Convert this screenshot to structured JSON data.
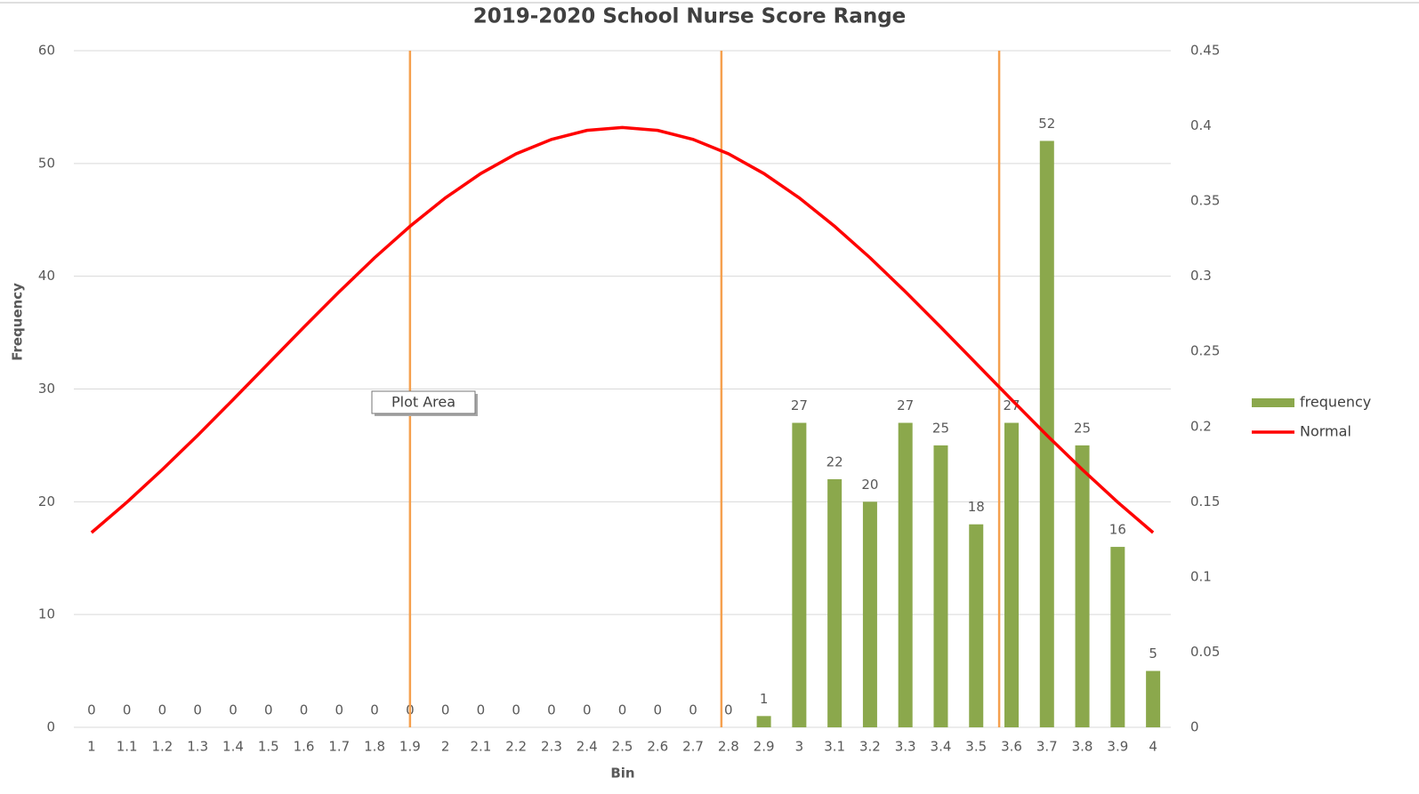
{
  "chart_data": {
    "type": "bar_line_combo",
    "title": "2019-2020 School Nurse Score Range",
    "x_label": "Bin",
    "y_label": "Frequency",
    "categories": [
      "1",
      "1.1",
      "1.2",
      "1.3",
      "1.4",
      "1.5",
      "1.6",
      "1.7",
      "1.8",
      "1.9",
      "2",
      "2.1",
      "2.2",
      "2.3",
      "2.4",
      "2.5",
      "2.6",
      "2.7",
      "2.8",
      "2.9",
      "3",
      "3.1",
      "3.2",
      "3.3",
      "3.4",
      "3.5",
      "3.6",
      "3.7",
      "3.8",
      "3.9",
      "4"
    ],
    "series": [
      {
        "name": "frequency",
        "type": "bar",
        "color": "#8ba84c",
        "axis": "y",
        "values": [
          0,
          0,
          0,
          0,
          0,
          0,
          0,
          0,
          0,
          0,
          0,
          0,
          0,
          0,
          0,
          0,
          0,
          0,
          0,
          1,
          27,
          22,
          20,
          27,
          25,
          18,
          27,
          52,
          25,
          16,
          5
        ]
      },
      {
        "name": "Normal",
        "type": "line",
        "color": "#ff0000",
        "axis": "y2",
        "values": [
          0.1295,
          0.1497,
          0.1714,
          0.1942,
          0.2179,
          0.242,
          0.2661,
          0.2897,
          0.3123,
          0.3332,
          0.3521,
          0.3683,
          0.3814,
          0.391,
          0.397,
          0.3989,
          0.397,
          0.391,
          0.3814,
          0.3683,
          0.3521,
          0.3332,
          0.3123,
          0.2897,
          0.2661,
          0.242,
          0.2179,
          0.1942,
          0.1714,
          0.1497,
          0.1295
        ]
      }
    ],
    "ylim": [
      0,
      60
    ],
    "yticks": [
      0,
      10,
      20,
      30,
      40,
      50,
      60
    ],
    "y2lim": [
      0,
      0.45
    ],
    "y2ticks": [
      0,
      0.05,
      0.1,
      0.15,
      0.2,
      0.25,
      0.3,
      0.35,
      0.4,
      0.45
    ],
    "grid": true,
    "vlines": {
      "color": "#f5a04e",
      "x": [
        1.9,
        2.78,
        3.565
      ]
    },
    "tooltip": "Plot Area",
    "legend": "right"
  }
}
